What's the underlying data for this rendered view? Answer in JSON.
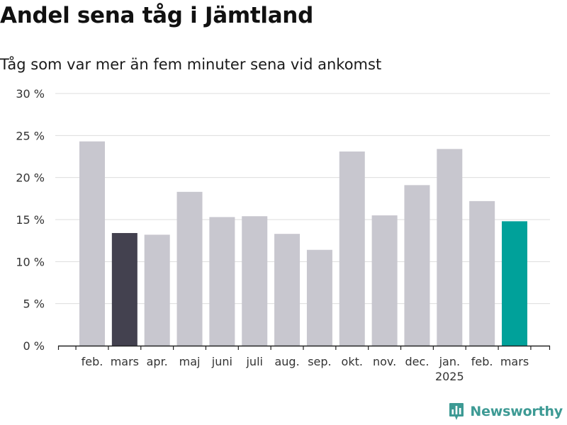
{
  "header": {
    "title": "Andel sena tåg i Jämtland",
    "subtitle": "Tåg som var mer än fem minuter sena vid ankomst"
  },
  "footer": {
    "brand": "Newsworthy",
    "logo_icon": "bar-chart-icon",
    "brand_color": "#3d9a94"
  },
  "chart_data": {
    "type": "bar",
    "categories": [
      "feb.",
      "mars",
      "apr.",
      "maj",
      "juni",
      "juli",
      "aug.",
      "sep.",
      "okt.",
      "nov.",
      "dec.",
      "jan.",
      "feb.",
      "mars"
    ],
    "year_labels": [
      {
        "category_index": 11,
        "label": "2025"
      }
    ],
    "values": [
      24.3,
      13.4,
      13.2,
      18.3,
      15.3,
      15.4,
      13.3,
      11.4,
      23.1,
      15.5,
      19.1,
      23.4,
      17.2,
      14.8
    ],
    "colors": {
      "default": "#c8c7cf",
      "previous_year": "#43414f",
      "latest": "#00a19a",
      "gridline": "#dddddd",
      "axis": "#222222"
    },
    "highlight": {
      "previous_year_index": 1,
      "latest_index": 13
    },
    "ylim": [
      0,
      30
    ],
    "yticks": [
      0,
      5,
      10,
      15,
      20,
      25,
      30
    ],
    "ytick_labels": [
      "0 %",
      "5 %",
      "10 %",
      "15 %",
      "20 %",
      "25 %",
      "30 %"
    ],
    "grid": true,
    "legend": "none",
    "xlabel": "",
    "ylabel": ""
  }
}
